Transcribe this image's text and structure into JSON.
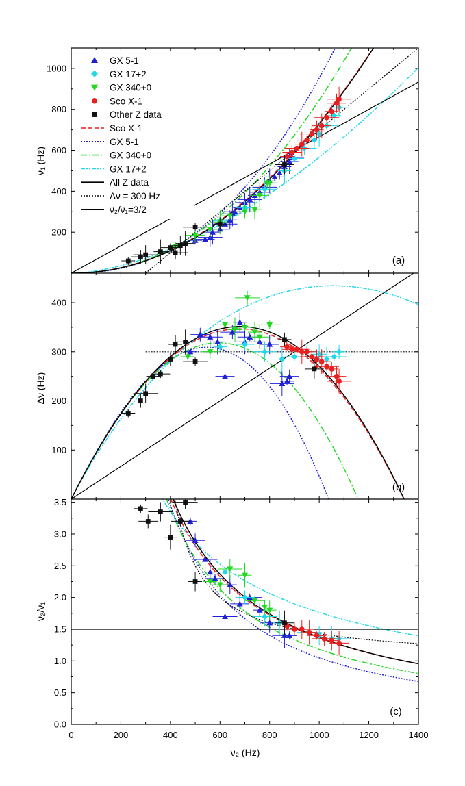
{
  "chart_data": [
    {
      "type": "scatter",
      "panel_label": "(a)",
      "xlabel": "",
      "ylabel": "ν₁ (Hz)",
      "xlim": [
        0,
        1400
      ],
      "ylim": [
        0,
        1100
      ],
      "xticks": [
        "0",
        "200",
        "400",
        "600",
        "800",
        "1000",
        "1200",
        "1400"
      ],
      "yticks": [
        "200",
        "400",
        "600",
        "800",
        "1000"
      ],
      "ytick_values": [
        200,
        400,
        600,
        800,
        1000
      ],
      "legend": [
        {
          "label": "GX 5-1",
          "kind": "marker",
          "shape": "triangle-up",
          "color": "#1f1fd6"
        },
        {
          "label": "GX 17+2",
          "kind": "marker",
          "shape": "diamond",
          "color": "#22d8e8"
        },
        {
          "label": "GX 340+0",
          "kind": "marker",
          "shape": "triangle-down",
          "color": "#22d822"
        },
        {
          "label": "Sco X-1",
          "kind": "marker",
          "shape": "circle",
          "color": "#e8201f"
        },
        {
          "label": "Other Z data",
          "kind": "marker",
          "shape": "square",
          "color": "#111111"
        },
        {
          "label": "Sco X-1",
          "kind": "line",
          "dash": "7,3",
          "color": "#e8201f"
        },
        {
          "label": "GX 5-1",
          "kind": "line",
          "dash": "2,2",
          "color": "#1f1fd6"
        },
        {
          "label": "GX 340+0",
          "kind": "line",
          "dash": "9,3,2,3",
          "color": "#22d822"
        },
        {
          "label": "GX 17+2",
          "kind": "line",
          "dash": "6,2,2,2,2,2",
          "color": "#22d8e8"
        },
        {
          "label": "All Z data",
          "kind": "line",
          "dash": "",
          "color": "#000000"
        },
        {
          "label": "Δν = 300 Hz",
          "kind": "line",
          "dash": "2,2",
          "color": "#000000"
        },
        {
          "label": "ν₂/ν₁=3/2",
          "kind": "line",
          "dash": "",
          "color": "#000000"
        }
      ],
      "series": [
        {
          "name": "GX 5-1",
          "x": [
            500,
            540,
            560,
            570,
            600,
            620,
            640,
            650,
            660,
            680,
            700,
            720,
            740,
            760,
            780,
            800,
            820,
            840,
            860,
            880,
            890
          ],
          "y": [
            160,
            165,
            175,
            200,
            215,
            240,
            260,
            290,
            300,
            320,
            345,
            360,
            380,
            395,
            420,
            450,
            470,
            490,
            520,
            545,
            565
          ]
        },
        {
          "name": "GX 17+2",
          "x": [
            600,
            700,
            780,
            860,
            900,
            940,
            980,
            1000,
            1030,
            1060,
            1080
          ],
          "y": [
            255,
            320,
            410,
            500,
            560,
            610,
            650,
            680,
            720,
            770,
            810
          ]
        },
        {
          "name": "GX 340+0",
          "x": [
            420,
            500,
            560,
            600,
            640,
            700,
            740,
            760,
            790,
            800
          ],
          "y": [
            130,
            185,
            215,
            250,
            280,
            300,
            310,
            380,
            440,
            440
          ]
        },
        {
          "name": "Sco X-1",
          "x": [
            870,
            890,
            910,
            930,
            950,
            970,
            990,
            1010,
            1030,
            1050,
            1070,
            1080
          ],
          "y": [
            570,
            590,
            610,
            630,
            650,
            680,
            700,
            720,
            760,
            790,
            830,
            850
          ]
        },
        {
          "name": "Other Z data",
          "x": [
            230,
            280,
            300,
            360,
            400,
            420,
            440,
            460,
            500,
            600,
            860
          ],
          "y": [
            60,
            80,
            90,
            105,
            125,
            100,
            135,
            145,
            225,
            240,
            530
          ]
        }
      ]
    },
    {
      "type": "scatter",
      "panel_label": "(b)",
      "xlabel": "",
      "ylabel": "Δν (Hz)",
      "xlim": [
        0,
        1400
      ],
      "ylim": [
        0,
        460
      ],
      "xticks": [
        "0",
        "200",
        "400",
        "600",
        "800",
        "1000",
        "1200",
        "1400"
      ],
      "yticks": [
        "100",
        "200",
        "300",
        "400"
      ],
      "ytick_values": [
        100,
        200,
        300,
        400
      ],
      "series": [
        {
          "name": "GX 5-1",
          "x": [
            480,
            520,
            560,
            590,
            620,
            650,
            680,
            700,
            720,
            760,
            800,
            850,
            870,
            880
          ],
          "y": [
            300,
            335,
            330,
            320,
            250,
            340,
            360,
            320,
            330,
            320,
            315,
            235,
            240,
            250
          ]
        },
        {
          "name": "GX 17+2",
          "x": [
            600,
            700,
            780,
            850,
            900,
            950,
            1000,
            1030,
            1060,
            1080
          ],
          "y": [
            310,
            315,
            300,
            285,
            290,
            300,
            295,
            285,
            290,
            300
          ]
        },
        {
          "name": "GX 340+0",
          "x": [
            470,
            560,
            620,
            660,
            700,
            710,
            740,
            760,
            800
          ],
          "y": [
            290,
            300,
            355,
            345,
            350,
            410,
            340,
            330,
            355
          ]
        },
        {
          "name": "Sco X-1",
          "x": [
            870,
            890,
            910,
            930,
            950,
            970,
            990,
            1010,
            1030,
            1050,
            1070,
            1080
          ],
          "y": [
            310,
            305,
            305,
            300,
            300,
            290,
            285,
            280,
            270,
            265,
            250,
            240
          ]
        },
        {
          "name": "Other Z data",
          "x": [
            230,
            280,
            300,
            330,
            360,
            400,
            420,
            460,
            500,
            860,
            980
          ],
          "y": [
            175,
            200,
            215,
            250,
            255,
            285,
            315,
            320,
            280,
            325,
            265
          ]
        }
      ]
    },
    {
      "type": "scatter",
      "panel_label": "(c)",
      "xlabel": "ν₂ (Hz)",
      "ylabel": "ν₂/ν₁",
      "xlim": [
        0,
        1400
      ],
      "ylim": [
        0,
        3.55
      ],
      "xticks": [
        "0",
        "200",
        "400",
        "600",
        "800",
        "1000",
        "1200",
        "1400"
      ],
      "yticks": [
        "0.0",
        "0.5",
        "1.0",
        "1.5",
        "2.0",
        "2.5",
        "3.0",
        "3.5"
      ],
      "ytick_values": [
        0,
        0.5,
        1.0,
        1.5,
        2.0,
        2.5,
        3.0,
        3.5
      ],
      "series": [
        {
          "name": "GX 5-1",
          "x": [
            480,
            500,
            540,
            560,
            580,
            620,
            640,
            680,
            720,
            760,
            800,
            860,
            880
          ],
          "y": [
            3.2,
            2.9,
            2.6,
            2.4,
            2.3,
            1.7,
            2.2,
            1.9,
            2.0,
            1.8,
            1.6,
            1.4,
            1.4
          ]
        },
        {
          "name": "GX 17+2",
          "x": [
            620,
            700,
            780,
            840,
            900,
            960,
            1000,
            1050,
            1080
          ],
          "y": [
            2.4,
            2.0,
            1.7,
            1.6,
            1.5,
            1.45,
            1.4,
            1.35,
            1.35
          ]
        },
        {
          "name": "GX 340+0",
          "x": [
            560,
            600,
            640,
            700,
            740,
            780,
            800
          ],
          "y": [
            2.25,
            2.2,
            2.45,
            2.35,
            1.95,
            1.85,
            1.8
          ]
        },
        {
          "name": "Sco X-1",
          "x": [
            870,
            900,
            930,
            960,
            990,
            1020,
            1050,
            1080
          ],
          "y": [
            1.55,
            1.5,
            1.5,
            1.45,
            1.4,
            1.35,
            1.32,
            1.28
          ]
        },
        {
          "name": "Other Z data",
          "x": [
            280,
            310,
            360,
            400,
            440,
            460,
            500,
            860
          ],
          "y": [
            3.4,
            3.2,
            3.35,
            2.95,
            3.2,
            3.5,
            2.25,
            1.6
          ]
        }
      ]
    }
  ]
}
